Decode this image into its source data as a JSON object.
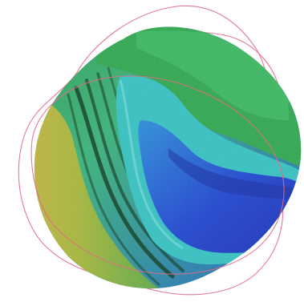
{
  "image": {
    "subject": "elevation-map-blob",
    "colors": {
      "outline": "#e26a86",
      "low": "#1f3ac8",
      "mid_low": "#2a8fd8",
      "mid": "#35c2c2",
      "mid_high": "#37a85a",
      "high": "#b7b52b",
      "peak": "#d4b042",
      "terrace": "#0d3d22"
    }
  }
}
